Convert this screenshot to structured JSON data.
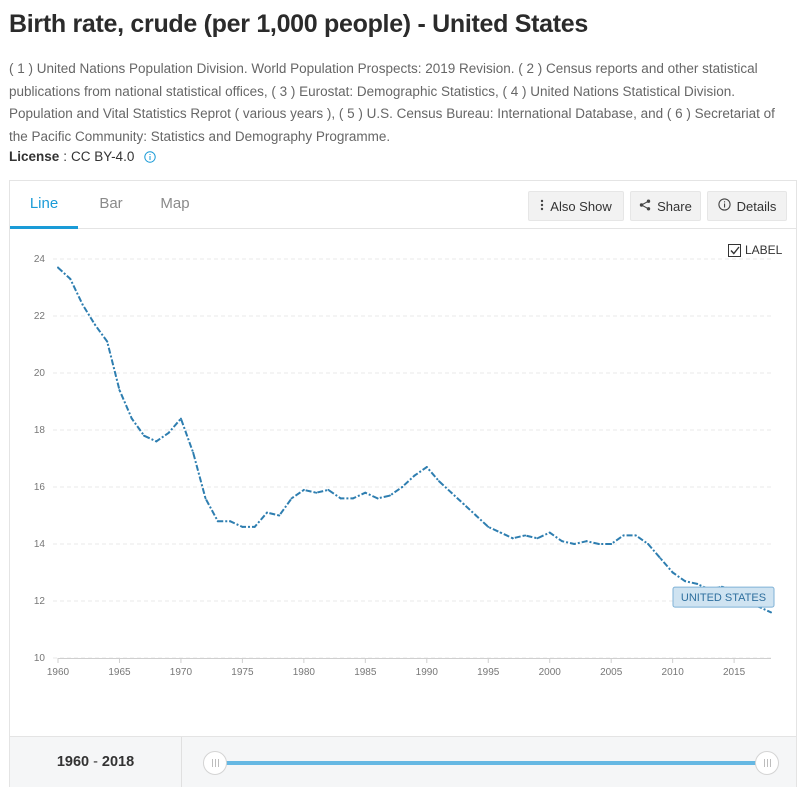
{
  "header": {
    "title": "Birth rate, crude (per 1,000 people) - United States",
    "sources": "( 1 ) United Nations Population Division. World Population Prospects: 2019 Revision. ( 2 ) Census reports and other statistical publications from national statistical offices, ( 3 ) Eurostat: Demographic Statistics, ( 4 ) United Nations Statistical Division. Population and Vital Statistics Reprot ( various years ), ( 5 ) U.S. Census Bureau: International Database, and ( 6 ) Secretariat of the Pacific Community: Statistics and Demography Programme.",
    "license_label": "License",
    "license_sep": ":",
    "license_value": "CC BY-4.0"
  },
  "tabs": [
    {
      "label": "Line",
      "active": true
    },
    {
      "label": "Bar",
      "active": false
    },
    {
      "label": "Map",
      "active": false
    }
  ],
  "toolbar": {
    "also_show": "Also Show",
    "share": "Share",
    "details": "Details"
  },
  "label_toggle": {
    "text": "LABEL",
    "checked": true
  },
  "range": {
    "start": "1960",
    "sep": "-",
    "end": "2018"
  },
  "colors": {
    "accent": "#1a9bd7",
    "line": "#2e7eb0",
    "series_label_bg": "#cfe3f1",
    "series_label_border": "#7fb2d6",
    "series_label_text": "#2e6f9e"
  },
  "chart_data": {
    "type": "line",
    "title": "",
    "xlabel": "",
    "ylabel": "",
    "xlim": [
      1960,
      2018
    ],
    "ylim": [
      10,
      24
    ],
    "x_ticks": [
      1960,
      1965,
      1970,
      1975,
      1980,
      1985,
      1990,
      1995,
      2000,
      2005,
      2010,
      2015
    ],
    "y_ticks": [
      10,
      12,
      14,
      16,
      18,
      20,
      22,
      24
    ],
    "grid": true,
    "line_style": "dash-dot",
    "x": [
      1960,
      1961,
      1962,
      1963,
      1964,
      1965,
      1966,
      1967,
      1968,
      1969,
      1970,
      1971,
      1972,
      1973,
      1974,
      1975,
      1976,
      1977,
      1978,
      1979,
      1980,
      1981,
      1982,
      1983,
      1984,
      1985,
      1986,
      1987,
      1988,
      1989,
      1990,
      1991,
      1992,
      1993,
      1994,
      1995,
      1996,
      1997,
      1998,
      1999,
      2000,
      2001,
      2002,
      2003,
      2004,
      2005,
      2006,
      2007,
      2008,
      2009,
      2010,
      2011,
      2012,
      2013,
      2014,
      2015,
      2016,
      2017,
      2018
    ],
    "series": [
      {
        "name": "UNITED STATES",
        "values": [
          23.7,
          23.3,
          22.4,
          21.7,
          21.1,
          19.4,
          18.4,
          17.8,
          17.6,
          17.9,
          18.4,
          17.2,
          15.6,
          14.8,
          14.8,
          14.6,
          14.6,
          15.1,
          15.0,
          15.6,
          15.9,
          15.8,
          15.9,
          15.6,
          15.6,
          15.8,
          15.6,
          15.7,
          16.0,
          16.4,
          16.7,
          16.2,
          15.8,
          15.4,
          15.0,
          14.6,
          14.4,
          14.2,
          14.3,
          14.2,
          14.4,
          14.1,
          14.0,
          14.1,
          14.0,
          14.0,
          14.3,
          14.3,
          14.0,
          13.5,
          13.0,
          12.7,
          12.6,
          12.4,
          12.5,
          12.4,
          12.2,
          11.8,
          11.6
        ]
      }
    ]
  }
}
